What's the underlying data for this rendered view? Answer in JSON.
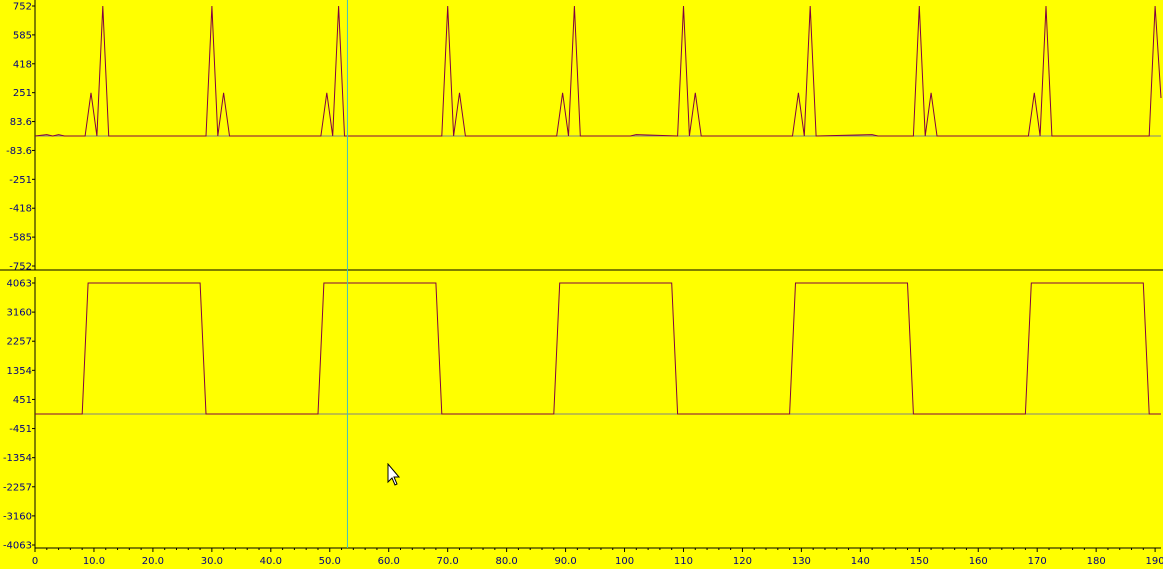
{
  "colors": {
    "background": "#ffff00",
    "trace": "#800040",
    "axis_text": "#000080",
    "axis_line": "#000000",
    "cursor_line": "#40c0c0",
    "zero_line": "#808080"
  },
  "cursor_x": 53,
  "chart_data": [
    {
      "type": "line",
      "name": "top-panel",
      "ylim": [
        -752,
        752
      ],
      "yticks": [
        "752",
        "585",
        "418",
        "251",
        "83.6",
        "-83.6",
        "-251",
        "-418",
        "-585",
        "-752"
      ],
      "xlim": [
        0,
        191
      ],
      "x": [
        0,
        2,
        3,
        4,
        5,
        8.5,
        9.5,
        10.5,
        11.5,
        12.5,
        29,
        30,
        31,
        32,
        33,
        48.5,
        49.5,
        50.5,
        51.5,
        52.5,
        69,
        70,
        71,
        72,
        73,
        88.5,
        89.5,
        90.5,
        91.5,
        92.5,
        101,
        102,
        109,
        110,
        111,
        112,
        113,
        128.5,
        129.5,
        130.5,
        131.5,
        132.5,
        142,
        143,
        149,
        150,
        151,
        152,
        153,
        168.5,
        169.5,
        170.5,
        171.5,
        172.5,
        189,
        190,
        191
      ],
      "y": [
        0,
        8,
        0,
        8,
        0,
        0,
        250,
        0,
        752,
        0,
        0,
        752,
        0,
        250,
        0,
        0,
        250,
        0,
        752,
        0,
        0,
        752,
        0,
        250,
        0,
        0,
        250,
        0,
        752,
        0,
        0,
        8,
        0,
        752,
        0,
        250,
        0,
        0,
        250,
        0,
        752,
        0,
        8,
        0,
        0,
        752,
        0,
        250,
        0,
        0,
        250,
        0,
        752,
        0,
        0,
        752,
        220
      ]
    },
    {
      "type": "line",
      "name": "bottom-panel",
      "ylim": [
        -4063,
        4063
      ],
      "yticks": [
        "4063",
        "3160",
        "2257",
        "1354",
        "451",
        "-451",
        "-1354",
        "-2257",
        "-3160",
        "-4063"
      ],
      "xlim": [
        0,
        191
      ],
      "x": [
        0,
        8,
        9,
        28,
        29,
        48,
        49,
        68,
        69,
        88,
        89,
        108,
        109,
        128,
        129,
        148,
        149,
        168,
        169,
        188,
        189,
        191
      ],
      "y": [
        0,
        0,
        4063,
        4063,
        0,
        0,
        4063,
        4063,
        0,
        0,
        4063,
        4063,
        0,
        0,
        4063,
        4063,
        0,
        0,
        4063,
        4063,
        0,
        0
      ]
    }
  ],
  "x_axis": {
    "ticks": [
      "0",
      "10.0",
      "20.0",
      "30.0",
      "40.0",
      "50.0",
      "60.0",
      "70.0",
      "80.0",
      "90.0",
      "100",
      "110",
      "120",
      "130",
      "140",
      "150",
      "160",
      "170",
      "180",
      "190"
    ]
  }
}
